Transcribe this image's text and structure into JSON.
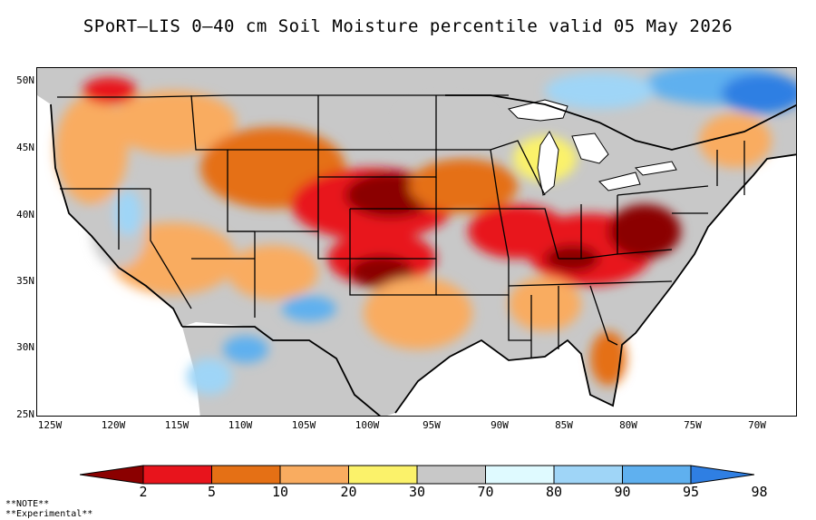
{
  "title": "SPoRT–LIS 0–40 cm Soil Moisture percentile valid 05 May 2026",
  "map": {
    "lat_ticks": [
      "50N",
      "45N",
      "40N",
      "35N",
      "30N",
      "25N"
    ],
    "lon_ticks": [
      "125W",
      "120W",
      "115W",
      "110W",
      "105W",
      "100W",
      "95W",
      "90W",
      "85W",
      "80W",
      "75W",
      "70W"
    ],
    "lon_range": [
      -126,
      -66
    ],
    "lat_range": [
      25,
      51
    ]
  },
  "colorbar": {
    "colors": [
      "#8b0000",
      "#e8141c",
      "#e57015",
      "#f9ac60",
      "#fbf26a",
      "#c8c8c8",
      "#dffaff",
      "#9fd5f7",
      "#5fb0ef",
      "#2f7fe3"
    ],
    "labels": [
      "2",
      "5",
      "10",
      "20",
      "30",
      "70",
      "80",
      "90",
      "95",
      "98"
    ]
  },
  "notes": [
    "**NOTE**",
    "**Experimental**"
  ]
}
